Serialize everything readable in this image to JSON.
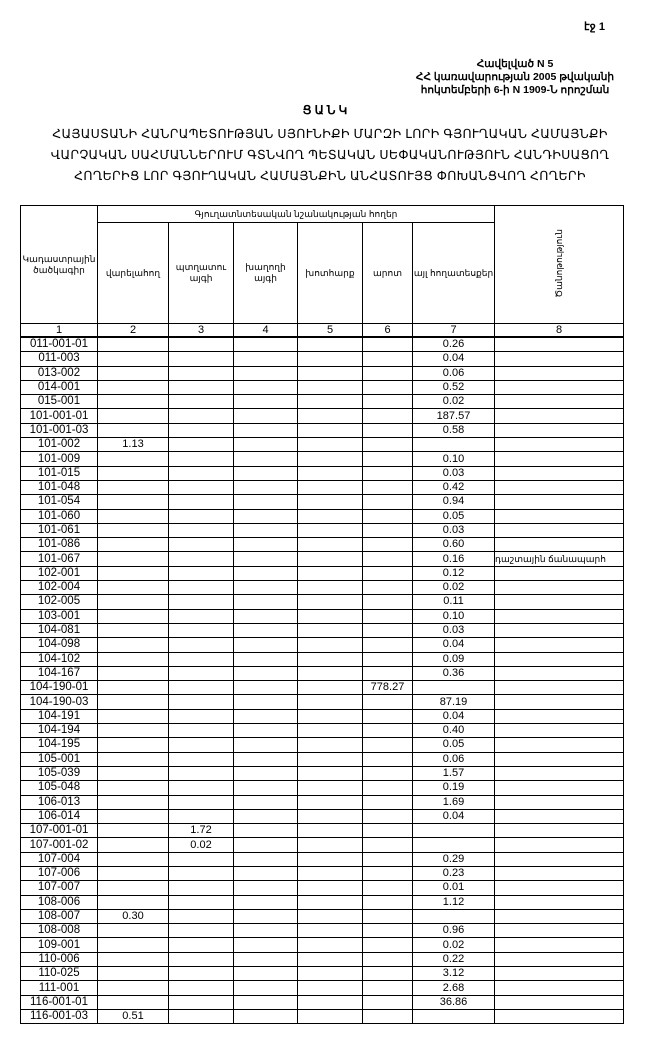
{
  "page_number": "էջ 1",
  "annex": {
    "line1": "Հավելված N 5",
    "line2": "ՀՀ կառավարության 2005 թվականի",
    "line3": "հոկտեմբերի 6-ի N 1909-Ն որոշման"
  },
  "title": "ՑԱՆԿ",
  "subtitle": "ՀԱՅԱՍՏԱՆԻ ՀԱՆՐԱՊԵՏՈՒԹՅԱՆ ՍՅՈՒՆԻՔԻ ՄԱՐԶԻ ԼՈՐԻ ԳՅՈՒՂԱԿԱՆ ՀԱՄԱՅՆՔԻ ՎԱՐՉԱԿԱՆ ՍԱՀՄԱՆՆԵՐՈՒՄ ԳՏՆՎՈՂ ՊԵՏԱԿԱՆ ՍԵՓԱԿԱՆՈՒԹՅՈՒՆ ՀԱՆԴԻՍԱՑՈՂ ՀՈՂԵՐԻՑ ԼՈՐ ԳՅՈՒՂԱԿԱՆ ՀԱՄԱՅՆՔԻՆ ԱՆՀԱՏՈՒՅՑ ՓՈԽԱՆՑՎՈՂ ՀՈՂԵՐԻ",
  "table": {
    "col_code": "Կադաստրային ծածկագիր",
    "group_header": "Գյուղատնտեսական նշանակության հողեր",
    "col_arable": "վարելահող",
    "col_orchard": "պտղատու այգի",
    "col_vineyard": "խաղողի այգի",
    "col_hayfield": "խոտհարք",
    "col_pasture": "արոտ",
    "col_other": "այլ հողատեսքեր",
    "col_note": "Ծանոթություն",
    "col_numbers": [
      "1",
      "2",
      "3",
      "4",
      "5",
      "6",
      "7",
      "8"
    ],
    "rows": [
      [
        "011-001-01",
        "",
        "",
        "",
        "",
        "",
        "0.26",
        ""
      ],
      [
        "011-003",
        "",
        "",
        "",
        "",
        "",
        "0.04",
        ""
      ],
      [
        "013-002",
        "",
        "",
        "",
        "",
        "",
        "0.06",
        ""
      ],
      [
        "014-001",
        "",
        "",
        "",
        "",
        "",
        "0.52",
        ""
      ],
      [
        "015-001",
        "",
        "",
        "",
        "",
        "",
        "0.02",
        ""
      ],
      [
        "101-001-01",
        "",
        "",
        "",
        "",
        "",
        "187.57",
        ""
      ],
      [
        "101-001-03",
        "",
        "",
        "",
        "",
        "",
        "0.58",
        ""
      ],
      [
        "101-002",
        "1.13",
        "",
        "",
        "",
        "",
        "",
        ""
      ],
      [
        "101-009",
        "",
        "",
        "",
        "",
        "",
        "0.10",
        ""
      ],
      [
        "101-015",
        "",
        "",
        "",
        "",
        "",
        "0.03",
        ""
      ],
      [
        "101-048",
        "",
        "",
        "",
        "",
        "",
        "0.42",
        ""
      ],
      [
        "101-054",
        "",
        "",
        "",
        "",
        "",
        "0.94",
        ""
      ],
      [
        "101-060",
        "",
        "",
        "",
        "",
        "",
        "0.05",
        ""
      ],
      [
        "101-061",
        "",
        "",
        "",
        "",
        "",
        "0.03",
        ""
      ],
      [
        "101-086",
        "",
        "",
        "",
        "",
        "",
        "0.60",
        ""
      ],
      [
        "101-067",
        "",
        "",
        "",
        "",
        "",
        "0.16",
        "դաշտային ճանապարհ"
      ],
      [
        "102-001",
        "",
        "",
        "",
        "",
        "",
        "0.12",
        ""
      ],
      [
        "102-004",
        "",
        "",
        "",
        "",
        "",
        "0.02",
        ""
      ],
      [
        "102-005",
        "",
        "",
        "",
        "",
        "",
        "0.11",
        ""
      ],
      [
        "103-001",
        "",
        "",
        "",
        "",
        "",
        "0.10",
        ""
      ],
      [
        "104-081",
        "",
        "",
        "",
        "",
        "",
        "0.03",
        ""
      ],
      [
        "104-098",
        "",
        "",
        "",
        "",
        "",
        "0.04",
        ""
      ],
      [
        "104-102",
        "",
        "",
        "",
        "",
        "",
        "0.09",
        ""
      ],
      [
        "104-167",
        "",
        "",
        "",
        "",
        "",
        "0.36",
        ""
      ],
      [
        "104-190-01",
        "",
        "",
        "",
        "",
        "778.27",
        "",
        ""
      ],
      [
        "104-190-03",
        "",
        "",
        "",
        "",
        "",
        "87.19",
        ""
      ],
      [
        "104-191",
        "",
        "",
        "",
        "",
        "",
        "0.04",
        ""
      ],
      [
        "104-194",
        "",
        "",
        "",
        "",
        "",
        "0.40",
        ""
      ],
      [
        "104-195",
        "",
        "",
        "",
        "",
        "",
        "0.05",
        ""
      ],
      [
        "105-001",
        "",
        "",
        "",
        "",
        "",
        "0.06",
        ""
      ],
      [
        "105-039",
        "",
        "",
        "",
        "",
        "",
        "1.57",
        ""
      ],
      [
        "105-048",
        "",
        "",
        "",
        "",
        "",
        "0.19",
        ""
      ],
      [
        "106-013",
        "",
        "",
        "",
        "",
        "",
        "1.69",
        ""
      ],
      [
        "106-014",
        "",
        "",
        "",
        "",
        "",
        "0.04",
        ""
      ],
      [
        "107-001-01",
        "",
        "1.72",
        "",
        "",
        "",
        "",
        ""
      ],
      [
        "107-001-02",
        "",
        "0.02",
        "",
        "",
        "",
        "",
        ""
      ],
      [
        "107-004",
        "",
        "",
        "",
        "",
        "",
        "0.29",
        ""
      ],
      [
        "107-006",
        "",
        "",
        "",
        "",
        "",
        "0.23",
        ""
      ],
      [
        "107-007",
        "",
        "",
        "",
        "",
        "",
        "0.01",
        ""
      ],
      [
        "108-006",
        "",
        "",
        "",
        "",
        "",
        "1.12",
        ""
      ],
      [
        "108-007",
        "0.30",
        "",
        "",
        "",
        "",
        "",
        ""
      ],
      [
        "108-008",
        "",
        "",
        "",
        "",
        "",
        "0.96",
        ""
      ],
      [
        "109-001",
        "",
        "",
        "",
        "",
        "",
        "0.02",
        ""
      ],
      [
        "110-006",
        "",
        "",
        "",
        "",
        "",
        "0.22",
        ""
      ],
      [
        "110-025",
        "",
        "",
        "",
        "",
        "",
        "3.12",
        ""
      ],
      [
        "111-001",
        "",
        "",
        "",
        "",
        "",
        "2.68",
        ""
      ],
      [
        "116-001-01",
        "",
        "",
        "",
        "",
        "",
        "36.86",
        ""
      ],
      [
        "116-001-03",
        "0.51",
        "",
        "",
        "",
        "",
        "",
        ""
      ]
    ]
  }
}
